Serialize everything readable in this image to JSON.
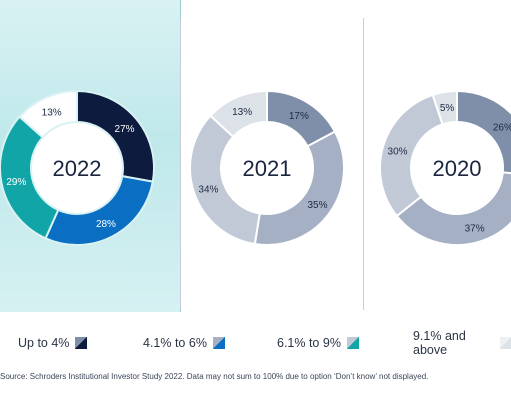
{
  "chart_data": [
    {
      "type": "pie",
      "title": "2022",
      "categories": [
        "Up to 4%",
        "4.1% to 6%",
        "6.1% to 9%",
        "9.1% and above"
      ],
      "values": [
        27,
        28,
        29,
        13
      ],
      "labels": [
        "27%",
        "28%",
        "29%",
        "13%"
      ],
      "colors": [
        "#0d1b3e",
        "#0a6fc2",
        "#12a5a8",
        "#ffffff"
      ]
    },
    {
      "type": "pie",
      "title": "2021",
      "categories": [
        "Up to 4%",
        "4.1% to 6%",
        "6.1% to 9%",
        "9.1% and above"
      ],
      "values": [
        17,
        35,
        34,
        13
      ],
      "labels": [
        "17%",
        "35%",
        "34%",
        "13%"
      ],
      "colors": [
        "#7f8faa",
        "#a5b0c4",
        "#c2c9d6",
        "#dde1e8"
      ]
    },
    {
      "type": "pie",
      "title": "2020",
      "categories": [
        "Up to 4%",
        "4.1% to 6%",
        "6.1% to 9%",
        "9.1% and above"
      ],
      "values": [
        26,
        37,
        30,
        5
      ],
      "labels": [
        "26%",
        "37%",
        "30%",
        "5%"
      ],
      "colors": [
        "#7f8faa",
        "#a5b0c4",
        "#c2c9d6",
        "#dde1e8"
      ]
    }
  ],
  "legend": [
    {
      "label": "Up to 4%",
      "color": "#0d1b3e",
      "color2": "#7f8faa"
    },
    {
      "label": "4.1% to 6%",
      "color": "#0a6fc2",
      "color2": "#a5b0c4"
    },
    {
      "label": "6.1% to 9%",
      "color": "#12a5a8",
      "color2": "#c2c9d6"
    },
    {
      "label": "9.1% and above",
      "color": "#dde1e8",
      "color2": "#eef0f4"
    }
  ],
  "footnote": "Source: Schroders Institutional Investor Study 2022. Data may not sum to 100% due to option ‘Don’t know’ not displayed."
}
